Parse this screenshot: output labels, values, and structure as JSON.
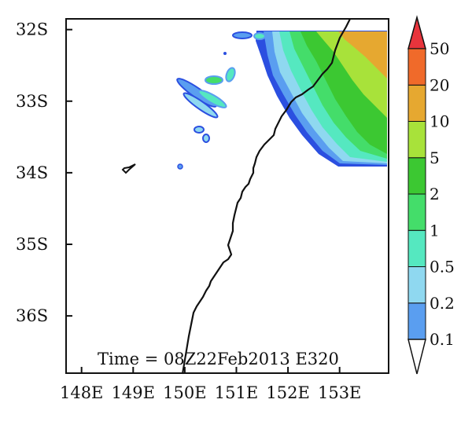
{
  "map": {
    "annotation": "Time = 08Z22Feb2013 E320",
    "lat_labels": [
      "32S",
      "33S",
      "34S",
      "35S",
      "36S"
    ],
    "lon_labels": [
      "148E",
      "149E",
      "150E",
      "151E",
      "152E",
      "153E"
    ],
    "lat_values": [
      -32,
      -33,
      -34,
      -35,
      -36
    ],
    "lon_values": [
      148,
      149,
      150,
      151,
      152,
      153
    ],
    "extent": {
      "lon_min": 147.7,
      "lon_max": 153.95,
      "lat_min": -36.8,
      "lat_max": -31.85
    }
  },
  "colorbar": {
    "labels": [
      "0.1",
      "0.2",
      "0.5",
      "1",
      "2",
      "5",
      "10",
      "20",
      "50"
    ],
    "colors": [
      "#2b4fe0",
      "#5a9ef0",
      "#8fd8f0",
      "#55e8c0",
      "#44dd6a",
      "#3cc832",
      "#a8e23a",
      "#e6a830",
      "#f06a2a",
      "#e8343c"
    ]
  },
  "colors": {
    "coastline": "#111111",
    "axes": "#111111"
  }
}
